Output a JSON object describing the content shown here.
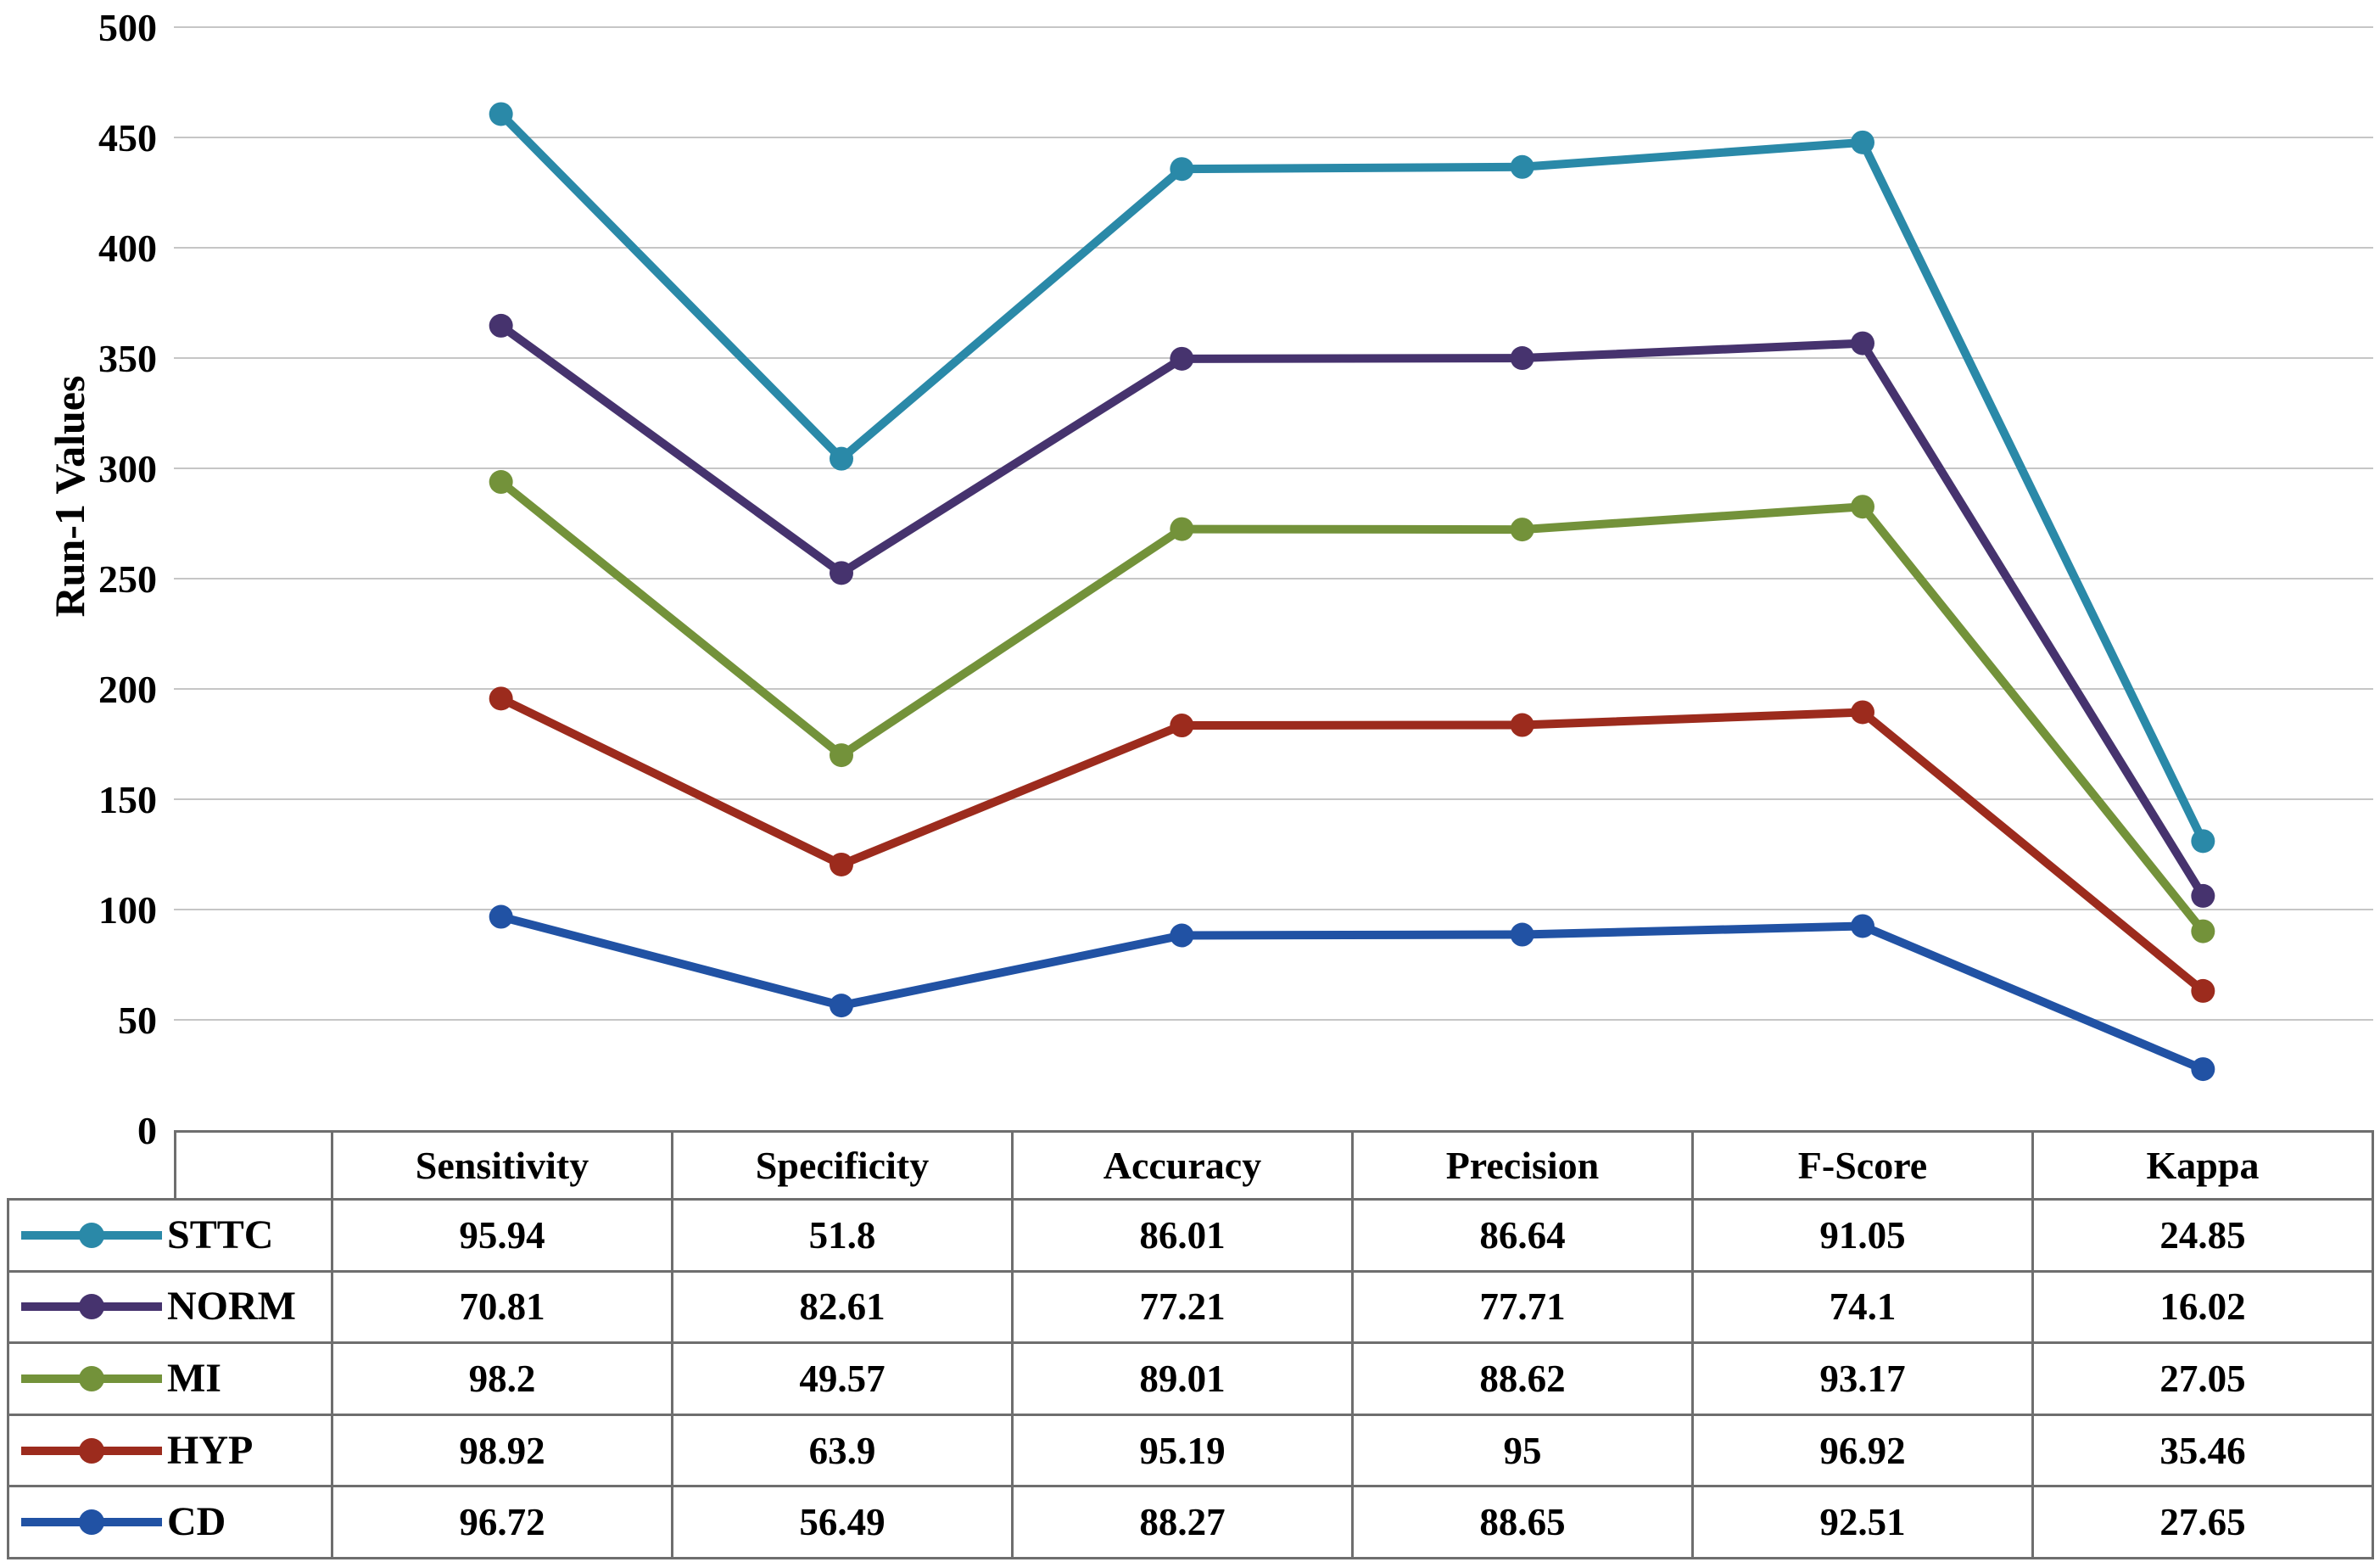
{
  "style": {
    "background": "#ffffff",
    "grid_color": "#c6c6c6",
    "table_border_color": "#6e6e6e",
    "text_color": "#000000"
  },
  "chart_data": {
    "type": "line",
    "stacked": true,
    "title": "",
    "ylabel": "Run-1 Values",
    "xlabel": "",
    "ylim": [
      0,
      500
    ],
    "ytick_step": 50,
    "grid": true,
    "legend_position": "table-left",
    "categories": [
      "Sensitivity",
      "Specificity",
      "Accuracy",
      "Precision",
      "F-Score",
      "Kappa"
    ],
    "series": [
      {
        "name": "STTC",
        "color": "#2a89a8",
        "values": [
          95.94,
          51.8,
          86.01,
          86.64,
          91.05,
          24.85
        ]
      },
      {
        "name": "NORM",
        "color": "#46336e",
        "values": [
          70.81,
          82.61,
          77.21,
          77.71,
          74.1,
          16.02
        ]
      },
      {
        "name": "MI",
        "color": "#73923a",
        "values": [
          98.2,
          49.57,
          89.01,
          88.62,
          93.17,
          27.05
        ]
      },
      {
        "name": "HYP",
        "color": "#9c2b1d",
        "values": [
          98.92,
          63.9,
          95.19,
          95,
          96.92,
          35.46
        ]
      },
      {
        "name": "CD",
        "color": "#2152a4",
        "values": [
          96.72,
          56.49,
          88.27,
          88.65,
          92.51,
          27.65
        ]
      }
    ],
    "stack_order": [
      "CD",
      "HYP",
      "MI",
      "NORM",
      "STTC"
    ]
  }
}
